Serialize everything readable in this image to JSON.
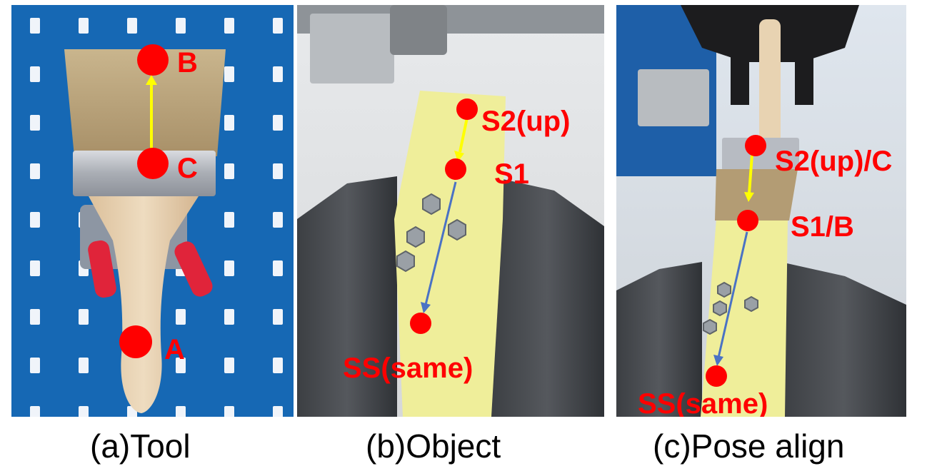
{
  "panels": [
    {
      "caption": "(a)Tool",
      "labels": {
        "a": "A",
        "b": "B",
        "c": "C"
      }
    },
    {
      "caption": "(b)Object",
      "labels": {
        "s2": "S2(up)",
        "s1": "S1",
        "ss": "SS(same)"
      }
    },
    {
      "caption": "(c)Pose align",
      "labels": {
        "s2c": "S2(up)/C",
        "s1b": "S1/B",
        "ss": "SS(same)"
      }
    }
  ],
  "colors": {
    "marker": "#ff0000",
    "yellow_arrow": "#ffff00",
    "blue_arrow": "#4a72c4",
    "pegboard": "#1668b4",
    "tape": "#efee9a"
  }
}
